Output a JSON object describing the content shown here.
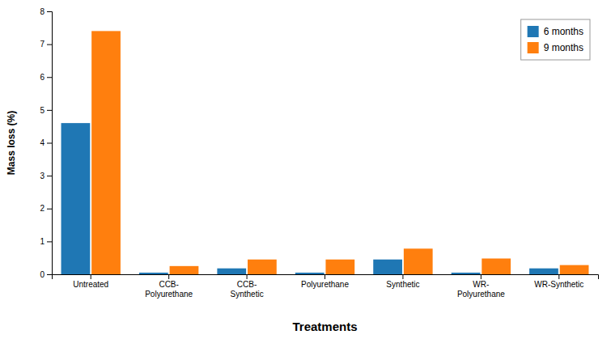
{
  "chart_data": {
    "type": "bar",
    "categories": [
      "Untreated",
      "CCB-\nPolyurethane",
      "CCB-\nSynthetic",
      "Polyurethane",
      "Synthetic",
      "WR-\nPolyurethane",
      "WR-Synthetic"
    ],
    "series": [
      {
        "name": "6 months",
        "values": [
          4.6,
          0.05,
          0.18,
          0.05,
          0.45,
          0.05,
          0.18
        ]
      },
      {
        "name": "9 months",
        "values": [
          7.4,
          0.25,
          0.45,
          0.45,
          0.78,
          0.48,
          0.28
        ]
      }
    ],
    "xlabel": "Treatments",
    "ylabel": "Mass loss (%)",
    "ylim": [
      0,
      8
    ],
    "yticks": [
      0,
      1,
      2,
      3,
      4,
      5,
      6,
      7,
      8
    ],
    "grid": false,
    "legend": "upper right"
  }
}
